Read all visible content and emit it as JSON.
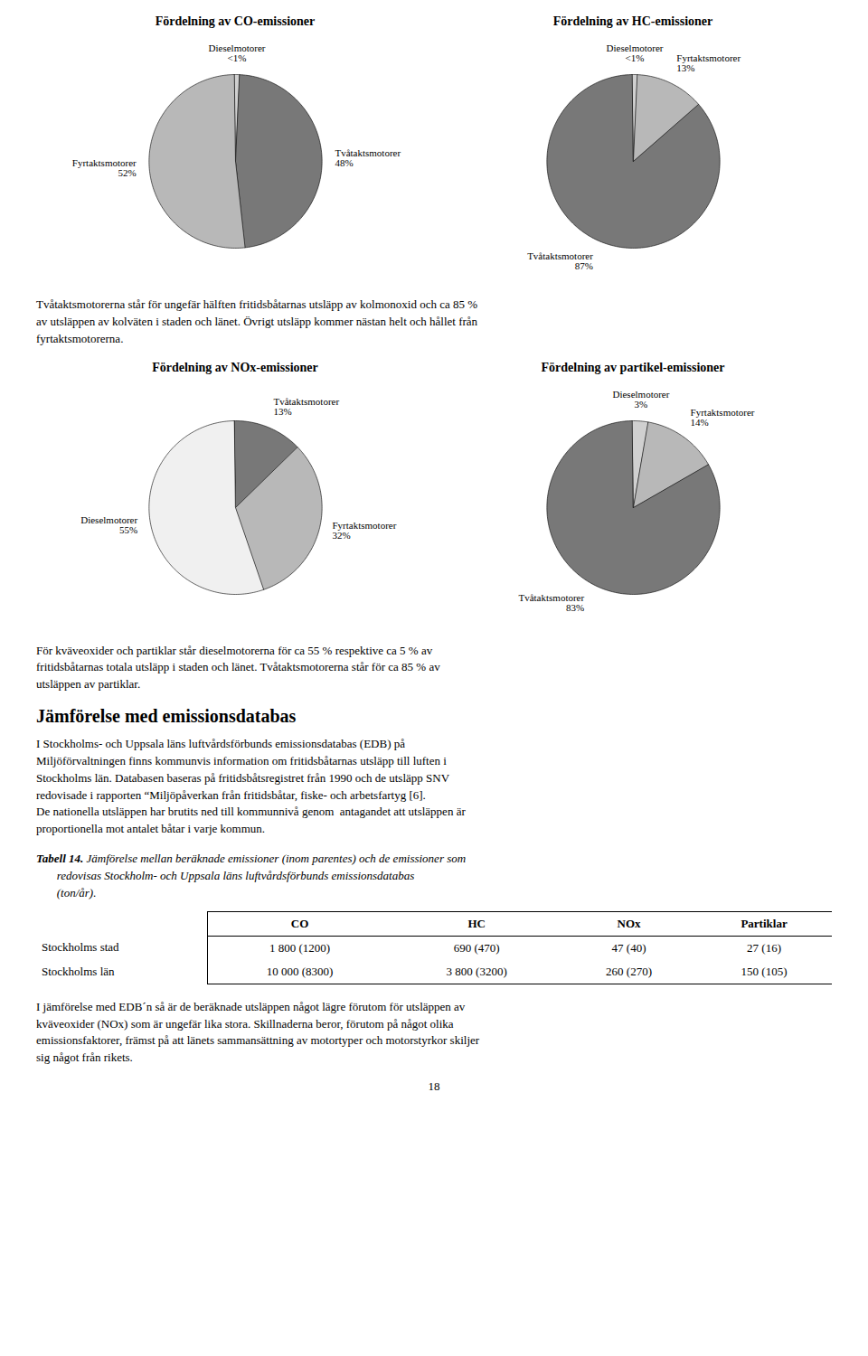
{
  "chart_data": [
    {
      "type": "pie",
      "title": "Fördelning av CO-emissioner",
      "categories": [
        "Dieselmotorer",
        "Tvåtaktsmotorer",
        "Fyrtaktsmotorer"
      ],
      "values": [
        1,
        48,
        52
      ],
      "value_labels": [
        "<1%",
        "48%",
        "52%"
      ],
      "colors": [
        "#d0d0d0",
        "#787878",
        "#b8b8b8"
      ]
    },
    {
      "type": "pie",
      "title": "Fördelning av HC-emissioner",
      "categories": [
        "Dieselmotorer",
        "Fyrtaktsmotorer",
        "Tvåtaktsmotorer"
      ],
      "values": [
        1,
        13,
        87
      ],
      "value_labels": [
        "<1%",
        "13%",
        "87%"
      ],
      "colors": [
        "#d0d0d0",
        "#b8b8b8",
        "#787878"
      ]
    },
    {
      "type": "pie",
      "title": "Fördelning av NOx-emissioner",
      "categories": [
        "Tvåtaktsmotorer",
        "Fyrtaktsmotorer",
        "Dieselmotorer"
      ],
      "values": [
        13,
        32,
        55
      ],
      "value_labels": [
        "13%",
        "32%",
        "55%"
      ],
      "colors": [
        "#787878",
        "#b8b8b8",
        "#f0f0f0"
      ]
    },
    {
      "type": "pie",
      "title": "Fördelning av partikel-emissioner",
      "categories": [
        "Dieselmotorer",
        "Fyrtaktsmotorer",
        "Tvåtaktsmotorer"
      ],
      "values": [
        3,
        14,
        83
      ],
      "value_labels": [
        "3%",
        "14%",
        "83%"
      ],
      "colors": [
        "#d0d0d0",
        "#b8b8b8",
        "#787878"
      ]
    }
  ],
  "annotations": [
    "Tvåtaktsmotorerna står för ungefär hälften fritidsbåtarnas utsläpp av kolmonoxid och ca 85 %\nav utsläppen av kolväten i staden och länet. Övrigt utsläpp kommer nästan helt och hållet från\nfyrtaktsmotorerna.",
    "För kväveoxider och partiklar står dieselmotorerna för ca 55 % respektive ca 5 % av\nfritidsbåtarnas totala utsläpp i staden och länet. Tvåtaktsmotorerna står för ca 85 % av\nutsläppen av partiklar.",
    "Jämförelse med emissionsdatabas",
    "I Stockholms- och Uppsala läns luftvårdsförbunds emissionsdatabas (EDB) på\nMiljöförvaltningen finns kommunvis information om fritidsbåtarnas utsläpp till luften i\nStockholms län. Databasen baseras på fritidsbåtsregistret från 1990 och de utsläpp SNV\nredovisade i rapporten “Miljöpåverkan från fritidsbåtar, fiske- och arbetsfartyg [6].\nDe nationella utsläppen har brutits ned till kommunnivå genom  antagandet att utsläppen är\nproportionella mot antalet båtar i varje kommun.",
    "Tabell 14.",
    " Jämförelse mellan beräknade emissioner (inom parentes) och de emissioner som\n       redovisas Stockholm- och Uppsala läns luftvårdsförbunds emissionsdatabas\n       (ton/år).",
    "I jämförelse med EDB´n så är de beräknade utsläppen något lägre förutom för utsläppen av\nkväveoxider (NOx) som är ungefär lika stora. Skillnaderna beror, förutom på något olika\nemissionsfaktorer, främst på att länets sammansättning av motortyper och motorstyrkor skiljer\nsig något från rikets.",
    "18"
  ],
  "table": {
    "headers": [
      null,
      "CO",
      "HC",
      "NOx",
      "Partiklar"
    ],
    "rows": [
      [
        "Stockholms stad",
        "1 800 (1200)",
        "690 (470)",
        "47 (40)",
        "27 (16)"
      ],
      [
        "Stockholms län",
        "10 000 (8300)",
        "3 800 (3200)",
        "260 (270)",
        "150 (105)"
      ]
    ]
  }
}
